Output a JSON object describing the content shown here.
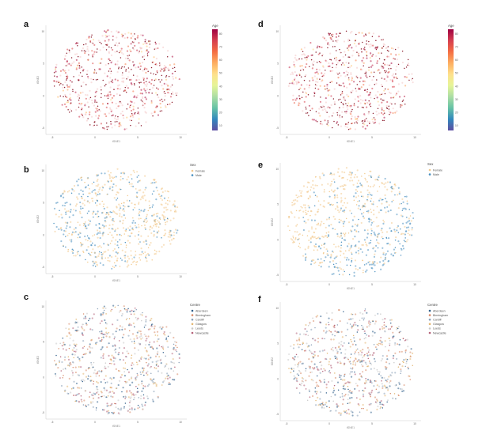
{
  "chart_data": [
    {
      "panel": "a",
      "type": "scatter",
      "color_by": "continuous",
      "xlabel": "tSNE1",
      "ylabel": "tSNE2",
      "xticks": [
        "-5",
        "0",
        "5",
        "10"
      ],
      "yticks": [
        "-5",
        "0",
        "5",
        "10"
      ],
      "colorbar": {
        "title": "Age",
        "ticks": [
          "80",
          "70",
          "60",
          "50",
          "40",
          "30",
          "20",
          "10"
        ]
      },
      "point_count": 700,
      "seed": 11
    },
    {
      "panel": "b",
      "type": "scatter",
      "color_by": "categorical",
      "xlabel": "tSNE1",
      "ylabel": "tSNE2",
      "xticks": [
        "-5",
        "0",
        "5",
        "10"
      ],
      "yticks": [
        "-5",
        "0",
        "5",
        "10"
      ],
      "legend": {
        "title": "Sex",
        "entries": [
          {
            "label": "Female",
            "color": "#f2c98c"
          },
          {
            "label": "Male",
            "color": "#4a90c0"
          }
        ]
      },
      "point_count": 700,
      "seed": 22
    },
    {
      "panel": "c",
      "type": "scatter",
      "color_by": "categorical",
      "xlabel": "tSNE1",
      "ylabel": "tSNE2",
      "xticks": [
        "-5",
        "0",
        "5",
        "10"
      ],
      "yticks": [
        "-5",
        "0",
        "5",
        "10"
      ],
      "legend": {
        "title": "Centre",
        "entries": [
          {
            "label": "Aberdeen",
            "color": "#2f5f8a"
          },
          {
            "label": "Birmingham",
            "color": "#d98c6a"
          },
          {
            "label": "Cardiff",
            "color": "#8aa0b8"
          },
          {
            "label": "Glasgow",
            "color": "#e3b56f"
          },
          {
            "label": "Leeds",
            "color": "#c9c9c9"
          },
          {
            "label": "Newcastle",
            "color": "#b5637a"
          }
        ]
      },
      "point_count": 700,
      "seed": 33
    },
    {
      "panel": "d",
      "type": "scatter",
      "color_by": "continuous",
      "xlabel": "tSNE1",
      "ylabel": "tSNE2",
      "xticks": [
        "-5",
        "0",
        "5",
        "10"
      ],
      "yticks": [
        "-5",
        "0",
        "5",
        "10"
      ],
      "colorbar": {
        "title": "Age",
        "ticks": [
          "80",
          "70",
          "60",
          "50",
          "40",
          "30",
          "20",
          "10"
        ]
      },
      "point_count": 700,
      "seed": 44
    },
    {
      "panel": "e",
      "type": "scatter",
      "color_by": "categorical",
      "xlabel": "tSNE1",
      "ylabel": "tSNE2",
      "xticks": [
        "-5",
        "0",
        "5",
        "10"
      ],
      "yticks": [
        "-5",
        "0",
        "5",
        "10"
      ],
      "legend": {
        "title": "Sex",
        "entries": [
          {
            "label": "Female",
            "color": "#f2c98c"
          },
          {
            "label": "Male",
            "color": "#4a90c0"
          }
        ]
      },
      "point_count": 700,
      "seed": 55
    },
    {
      "panel": "f",
      "type": "scatter",
      "color_by": "categorical",
      "xlabel": "tSNE1",
      "ylabel": "tSNE2",
      "xticks": [
        "-5",
        "0",
        "5",
        "10"
      ],
      "yticks": [
        "-5",
        "0",
        "5",
        "10"
      ],
      "legend": {
        "title": "Centre",
        "entries": [
          {
            "label": "Aberdeen",
            "color": "#2f5f8a"
          },
          {
            "label": "Birmingham",
            "color": "#d98c6a"
          },
          {
            "label": "Cardiff",
            "color": "#8aa0b8"
          },
          {
            "label": "Glasgow",
            "color": "#e3b56f"
          },
          {
            "label": "Leeds",
            "color": "#c9c9c9"
          },
          {
            "label": "Newcastle",
            "color": "#b5637a"
          }
        ]
      },
      "point_count": 700,
      "seed": 66
    }
  ]
}
